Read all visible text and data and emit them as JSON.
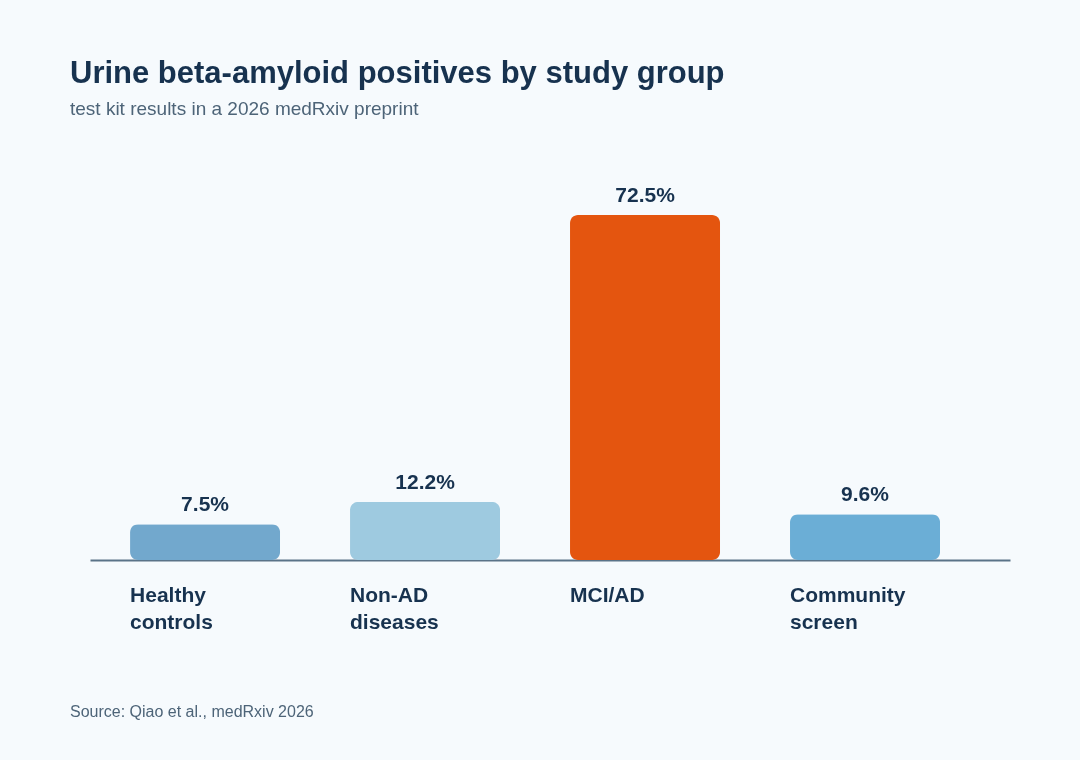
{
  "chart_data": {
    "type": "bar",
    "title": "Urine beta-amyloid positives by study group",
    "subtitle": "test kit results in a 2026 medRxiv preprint",
    "categories": [
      "Healthy controls",
      "Non-AD diseases",
      "MCI/AD",
      "Community screen"
    ],
    "values": [
      7.5,
      12.2,
      72.5,
      9.6
    ],
    "colors": [
      "#72a8cd",
      "#9ecae0",
      "#e4550f",
      "#6baed6"
    ],
    "value_labels": [
      "7.5%",
      "12.2%",
      "72.5%",
      "9.6%"
    ],
    "tick_labels": "x",
    "annotations": [
      "Source: Qiao et al., medRxiv 2026"
    ]
  }
}
